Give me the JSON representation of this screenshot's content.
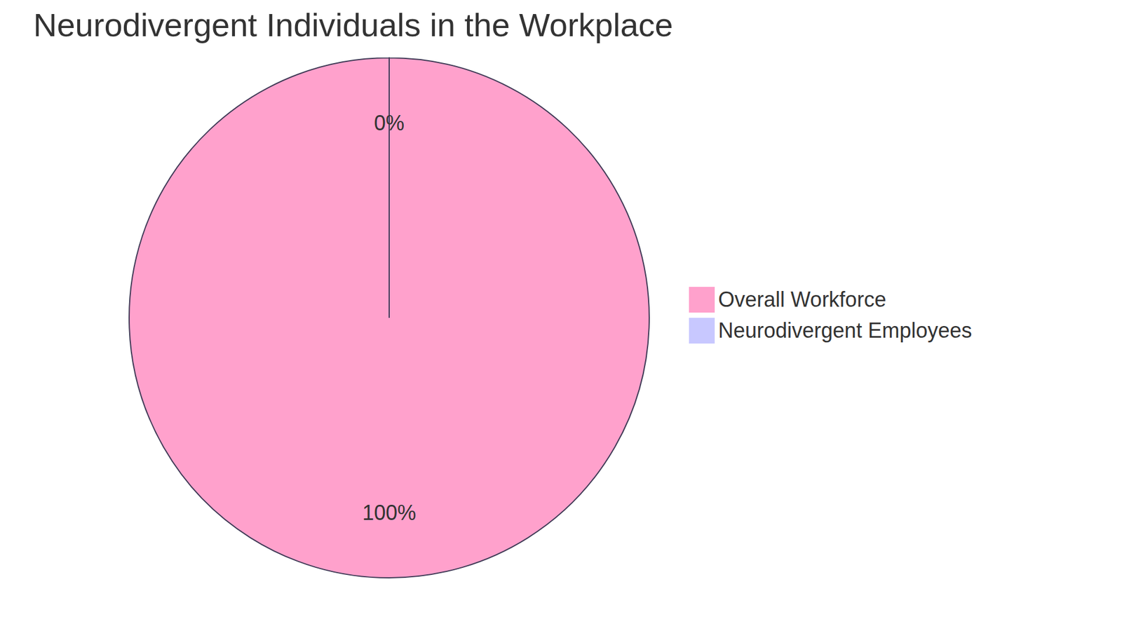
{
  "chart_data": {
    "type": "pie",
    "title": "Neurodivergent Individuals in the Workplace",
    "categories": [
      "Overall Workforce",
      "Neurodivergent Employees"
    ],
    "values": [
      100,
      0
    ],
    "value_labels": [
      "100%",
      "0%"
    ],
    "colors": [
      "#ffa1cc",
      "#c8c8ff"
    ],
    "data_labels": true,
    "legend": "right"
  }
}
